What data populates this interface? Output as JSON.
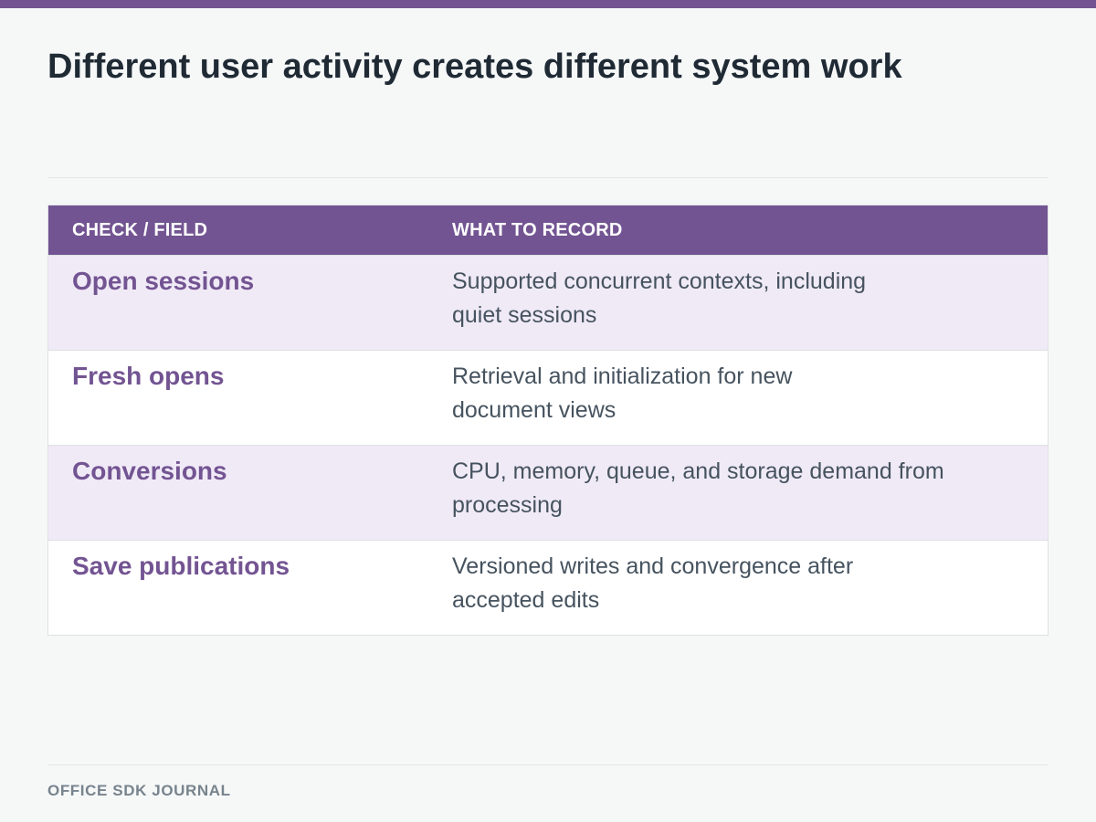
{
  "title": "Different user activity creates different system work",
  "table": {
    "headers": {
      "col1": "CHECK / FIELD",
      "col2": "WHAT TO RECORD"
    },
    "rows": [
      {
        "label": "Open sessions",
        "line1": "Supported concurrent contexts, including",
        "line2": "quiet sessions"
      },
      {
        "label": "Fresh opens",
        "line1": "Retrieval and initialization for new",
        "line2": "document views"
      },
      {
        "label": "Conversions",
        "line1": "CPU, memory, queue, and storage demand from",
        "line2": "processing"
      },
      {
        "label": "Save publications",
        "line1": "Versioned writes and convergence after",
        "line2": "accepted edits"
      }
    ]
  },
  "footer": "OFFICE SDK JOURNAL",
  "colors": {
    "accent": "#735492",
    "row_alt": "#f0eaf7",
    "text_dark": "#1f2a35",
    "text_body": "#46535f"
  }
}
